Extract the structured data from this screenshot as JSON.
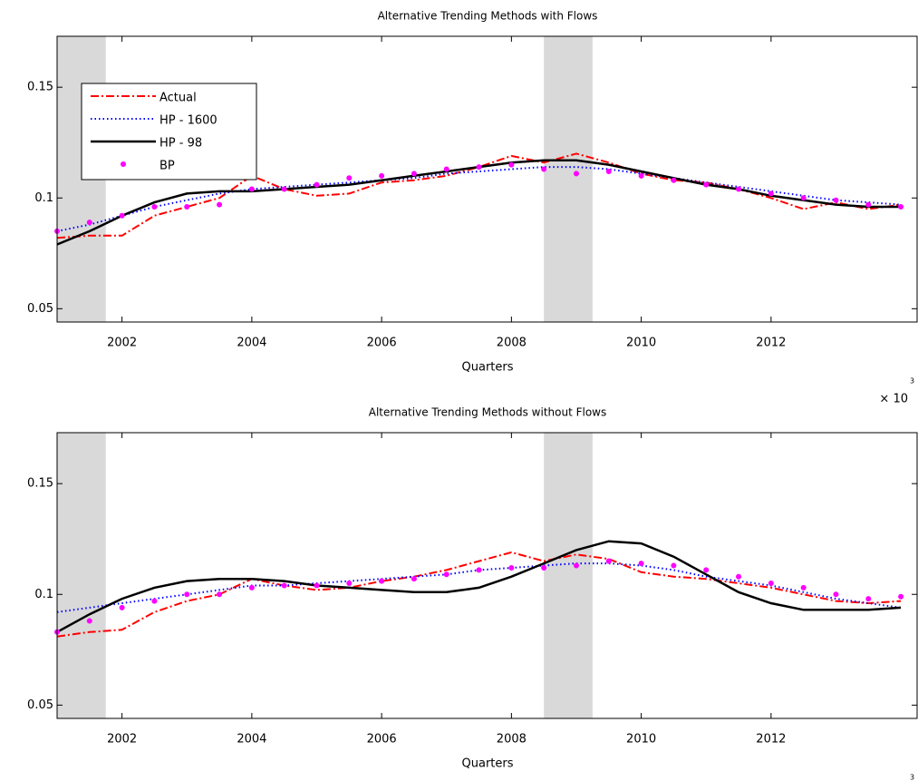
{
  "chart_data": [
    {
      "type": "line",
      "title": "Alternative Trending Methods with Flows",
      "x_label": "Quarters",
      "x_exponent": {
        "base": "× 10",
        "power": "3"
      },
      "x": [
        2001,
        2001.5,
        2002,
        2002.5,
        2003,
        2003.5,
        2004,
        2004.5,
        2005,
        2005.5,
        2006,
        2006.5,
        2007,
        2007.5,
        2008,
        2008.5,
        2009,
        2009.5,
        2010,
        2010.5,
        2011,
        2011.5,
        2012,
        2012.5,
        2013,
        2013.5,
        2014
      ],
      "xlim": [
        2001,
        2014.25
      ],
      "xticks": [
        2002,
        2004,
        2006,
        2008,
        2010,
        2012
      ],
      "ylim": [
        0.044,
        0.173
      ],
      "yticks": [
        0.05,
        0.1,
        0.15
      ],
      "shaded_regions": [
        [
          2001,
          2001.75
        ],
        [
          2008.5,
          2009.25
        ]
      ],
      "shade_color": "#d9d9d9",
      "legend": "upper left",
      "series": [
        {
          "name": "Actual",
          "color": "#ff0000",
          "style": "dashdot",
          "values": [
            0.082,
            0.083,
            0.083,
            0.092,
            0.096,
            0.1,
            0.11,
            0.104,
            0.101,
            0.102,
            0.107,
            0.108,
            0.11,
            0.114,
            0.119,
            0.116,
            0.12,
            0.116,
            0.111,
            0.108,
            0.107,
            0.104,
            0.1,
            0.095,
            0.098,
            0.095,
            0.097
          ]
        },
        {
          "name": "HP - 1600",
          "color": "#0000ff",
          "style": "dotted",
          "values": [
            0.085,
            0.088,
            0.092,
            0.096,
            0.099,
            0.102,
            0.104,
            0.105,
            0.106,
            0.107,
            0.108,
            0.109,
            0.111,
            0.112,
            0.113,
            0.114,
            0.114,
            0.113,
            0.111,
            0.109,
            0.107,
            0.105,
            0.103,
            0.101,
            0.099,
            0.098,
            0.097
          ]
        },
        {
          "name": "HP - 98",
          "color": "#000000",
          "style": "solid",
          "values": [
            0.079,
            0.085,
            0.092,
            0.098,
            0.102,
            0.103,
            0.103,
            0.104,
            0.105,
            0.106,
            0.108,
            0.11,
            0.112,
            0.114,
            0.116,
            0.117,
            0.117,
            0.115,
            0.112,
            0.109,
            0.106,
            0.104,
            0.101,
            0.099,
            0.097,
            0.096,
            0.096
          ]
        },
        {
          "name": "BP",
          "color": "#ff00ff",
          "style": "markers",
          "values": [
            0.085,
            0.089,
            0.092,
            0.096,
            0.096,
            0.097,
            0.104,
            0.104,
            0.106,
            0.109,
            0.11,
            0.111,
            0.113,
            0.114,
            0.115,
            0.113,
            0.111,
            0.112,
            0.11,
            0.108,
            0.106,
            0.104,
            0.102,
            0.1,
            0.099,
            0.097,
            0.096
          ]
        }
      ]
    },
    {
      "type": "line",
      "title": "Alternative Trending Methods without Flows",
      "x_label": "Quarters",
      "x_exponent": {
        "base": "× 10",
        "power": "3"
      },
      "x": [
        2001,
        2001.5,
        2002,
        2002.5,
        2003,
        2003.5,
        2004,
        2004.5,
        2005,
        2005.5,
        2006,
        2006.5,
        2007,
        2007.5,
        2008,
        2008.5,
        2009,
        2009.5,
        2010,
        2010.5,
        2011,
        2011.5,
        2012,
        2012.5,
        2013,
        2013.5,
        2014
      ],
      "xlim": [
        2001,
        2014.25
      ],
      "xticks": [
        2002,
        2004,
        2006,
        2008,
        2010,
        2012
      ],
      "ylim": [
        0.044,
        0.173
      ],
      "yticks": [
        0.05,
        0.1,
        0.15
      ],
      "shaded_regions": [
        [
          2001,
          2001.75
        ],
        [
          2008.5,
          2009.25
        ]
      ],
      "shade_color": "#d9d9d9",
      "series": [
        {
          "color": "#ff0000",
          "style": "dashdot",
          "values": [
            0.081,
            0.083,
            0.084,
            0.092,
            0.097,
            0.1,
            0.107,
            0.104,
            0.102,
            0.103,
            0.106,
            0.108,
            0.111,
            0.115,
            0.119,
            0.115,
            0.118,
            0.116,
            0.11,
            0.108,
            0.107,
            0.105,
            0.103,
            0.1,
            0.097,
            0.096,
            0.097
          ]
        },
        {
          "color": "#0000ff",
          "style": "dotted",
          "values": [
            0.092,
            0.094,
            0.096,
            0.098,
            0.1,
            0.102,
            0.104,
            0.104,
            0.105,
            0.106,
            0.107,
            0.108,
            0.109,
            0.111,
            0.112,
            0.113,
            0.114,
            0.114,
            0.113,
            0.111,
            0.108,
            0.106,
            0.104,
            0.101,
            0.098,
            0.096,
            0.094
          ]
        },
        {
          "color": "#000000",
          "style": "solid",
          "values": [
            0.083,
            0.091,
            0.098,
            0.103,
            0.106,
            0.107,
            0.107,
            0.106,
            0.104,
            0.103,
            0.102,
            0.101,
            0.101,
            0.103,
            0.108,
            0.114,
            0.12,
            0.124,
            0.123,
            0.117,
            0.109,
            0.101,
            0.096,
            0.093,
            0.093,
            0.093,
            0.094
          ]
        },
        {
          "color": "#ff00ff",
          "style": "markers",
          "values": [
            0.083,
            0.088,
            0.094,
            0.097,
            0.1,
            0.1,
            0.103,
            0.104,
            0.104,
            0.105,
            0.106,
            0.107,
            0.109,
            0.111,
            0.112,
            0.112,
            0.113,
            0.115,
            0.114,
            0.113,
            0.111,
            0.108,
            0.105,
            0.103,
            0.1,
            0.098,
            0.099
          ]
        }
      ]
    }
  ]
}
